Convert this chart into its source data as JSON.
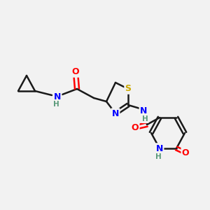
{
  "background_color": "#f2f2f2",
  "bond_color": "#1a1a1a",
  "bond_width": 1.8,
  "atom_colors": {
    "C": "#1a1a1a",
    "N": "#0000ff",
    "O": "#ff0000",
    "S": "#ccaa00",
    "H": "#5a9a7a"
  },
  "font_size": 9,
  "font_size_small": 7.5,
  "figsize": [
    3.0,
    3.0
  ],
  "dpi": 100
}
